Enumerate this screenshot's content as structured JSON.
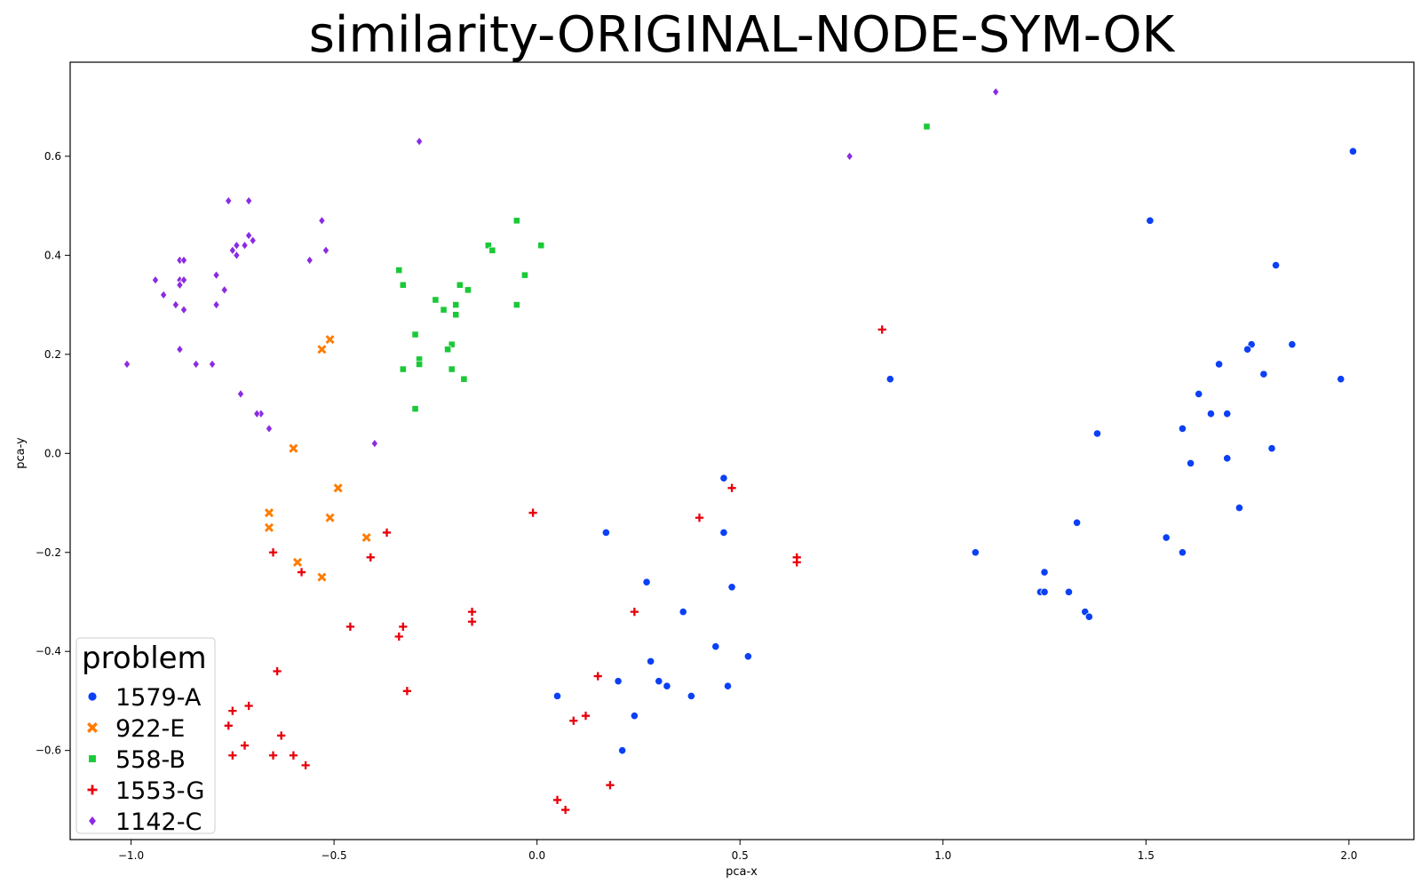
{
  "chart_data": {
    "type": "scatter",
    "title": "similarity-ORIGINAL-NODE-SYM-OK",
    "xlabel": "pca-x",
    "ylabel": "pca-y",
    "xlim": [
      -1.15,
      2.16
    ],
    "ylim": [
      -0.78,
      0.79
    ],
    "x_ticks": [
      -1.0,
      -0.5,
      0.0,
      0.5,
      1.0,
      1.5,
      2.0
    ],
    "x_tick_labels": [
      "−1.0",
      "−0.5",
      "0.0",
      "0.5",
      "1.0",
      "1.5",
      "2.0"
    ],
    "y_ticks": [
      -0.6,
      -0.4,
      -0.2,
      0.0,
      0.2,
      0.4,
      0.6
    ],
    "y_tick_labels": [
      "−0.6",
      "−0.4",
      "−0.2",
      "0.0",
      "0.2",
      "0.4",
      "0.6"
    ],
    "grid": false,
    "legend": {
      "title": "problem",
      "placement": "lower-left"
    },
    "series": [
      {
        "name": "1579-A",
        "marker": "circle",
        "color": "#0b40f5",
        "points": [
          [
            2.01,
            0.61
          ],
          [
            1.51,
            0.47
          ],
          [
            1.82,
            0.38
          ],
          [
            1.76,
            0.22
          ],
          [
            1.75,
            0.21
          ],
          [
            1.86,
            0.22
          ],
          [
            1.68,
            0.18
          ],
          [
            1.79,
            0.16
          ],
          [
            1.98,
            0.15
          ],
          [
            1.63,
            0.12
          ],
          [
            1.66,
            0.08
          ],
          [
            1.7,
            0.08
          ],
          [
            1.59,
            0.05
          ],
          [
            1.38,
            0.04
          ],
          [
            1.81,
            0.01
          ],
          [
            1.61,
            -0.02
          ],
          [
            1.7,
            -0.01
          ],
          [
            1.73,
            -0.11
          ],
          [
            1.33,
            -0.14
          ],
          [
            1.55,
            -0.17
          ],
          [
            1.59,
            -0.2
          ],
          [
            1.25,
            -0.24
          ],
          [
            1.24,
            -0.28
          ],
          [
            1.25,
            -0.28
          ],
          [
            1.31,
            -0.28
          ],
          [
            1.35,
            -0.32
          ],
          [
            1.36,
            -0.33
          ],
          [
            1.08,
            -0.2
          ],
          [
            0.87,
            0.15
          ],
          [
            0.46,
            -0.05
          ],
          [
            0.46,
            -0.16
          ],
          [
            0.17,
            -0.16
          ],
          [
            0.27,
            -0.26
          ],
          [
            0.48,
            -0.27
          ],
          [
            0.36,
            -0.32
          ],
          [
            0.44,
            -0.39
          ],
          [
            0.52,
            -0.41
          ],
          [
            0.28,
            -0.42
          ],
          [
            0.3,
            -0.46
          ],
          [
            0.32,
            -0.47
          ],
          [
            0.2,
            -0.46
          ],
          [
            0.47,
            -0.47
          ],
          [
            0.38,
            -0.49
          ],
          [
            0.05,
            -0.49
          ],
          [
            0.24,
            -0.53
          ],
          [
            0.21,
            -0.6
          ]
        ]
      },
      {
        "name": "922-E",
        "marker": "x",
        "color": "#ff7c00",
        "points": [
          [
            -0.51,
            0.23
          ],
          [
            -0.53,
            0.21
          ],
          [
            -0.6,
            0.01
          ],
          [
            -0.49,
            -0.07
          ],
          [
            -0.66,
            -0.12
          ],
          [
            -0.66,
            -0.15
          ],
          [
            -0.51,
            -0.13
          ],
          [
            -0.42,
            -0.17
          ],
          [
            -0.59,
            -0.22
          ],
          [
            -0.53,
            -0.25
          ]
        ]
      },
      {
        "name": "558-B",
        "marker": "square",
        "color": "#1ac938",
        "points": [
          [
            0.96,
            0.66
          ],
          [
            -0.05,
            0.47
          ],
          [
            0.01,
            0.42
          ],
          [
            -0.12,
            0.42
          ],
          [
            -0.11,
            0.41
          ],
          [
            -0.34,
            0.37
          ],
          [
            -0.03,
            0.36
          ],
          [
            -0.33,
            0.34
          ],
          [
            -0.19,
            0.34
          ],
          [
            -0.17,
            0.33
          ],
          [
            -0.25,
            0.31
          ],
          [
            -0.2,
            0.3
          ],
          [
            -0.23,
            0.29
          ],
          [
            -0.05,
            0.3
          ],
          [
            -0.2,
            0.28
          ],
          [
            -0.3,
            0.24
          ],
          [
            -0.21,
            0.22
          ],
          [
            -0.22,
            0.21
          ],
          [
            -0.29,
            0.19
          ],
          [
            -0.29,
            0.18
          ],
          [
            -0.33,
            0.17
          ],
          [
            -0.21,
            0.17
          ],
          [
            -0.18,
            0.15
          ],
          [
            -0.3,
            0.09
          ]
        ]
      },
      {
        "name": "1553-G",
        "marker": "plus",
        "color": "#e8000b",
        "points": [
          [
            0.85,
            0.25
          ],
          [
            0.48,
            -0.07
          ],
          [
            0.4,
            -0.13
          ],
          [
            -0.01,
            -0.12
          ],
          [
            0.64,
            -0.21
          ],
          [
            0.64,
            -0.22
          ],
          [
            -0.37,
            -0.16
          ],
          [
            -0.65,
            -0.2
          ],
          [
            -0.41,
            -0.21
          ],
          [
            -0.58,
            -0.24
          ],
          [
            -0.16,
            -0.32
          ],
          [
            -0.16,
            -0.34
          ],
          [
            0.24,
            -0.32
          ],
          [
            -0.46,
            -0.35
          ],
          [
            -0.33,
            -0.35
          ],
          [
            -0.34,
            -0.37
          ],
          [
            -0.32,
            -0.48
          ],
          [
            -0.64,
            -0.44
          ],
          [
            0.15,
            -0.45
          ],
          [
            -0.71,
            -0.51
          ],
          [
            -0.75,
            -0.52
          ],
          [
            -0.76,
            -0.55
          ],
          [
            0.12,
            -0.53
          ],
          [
            0.09,
            -0.54
          ],
          [
            -0.63,
            -0.57
          ],
          [
            -0.72,
            -0.59
          ],
          [
            -0.75,
            -0.61
          ],
          [
            -0.65,
            -0.61
          ],
          [
            -0.6,
            -0.61
          ],
          [
            -0.57,
            -0.63
          ],
          [
            0.18,
            -0.67
          ],
          [
            0.05,
            -0.7
          ],
          [
            0.07,
            -0.72
          ]
        ]
      },
      {
        "name": "1142-C",
        "marker": "diamond",
        "color": "#8b2be2",
        "points": [
          [
            1.13,
            0.73
          ],
          [
            0.77,
            0.6
          ],
          [
            -0.29,
            0.63
          ],
          [
            -0.76,
            0.51
          ],
          [
            -0.71,
            0.51
          ],
          [
            -0.53,
            0.47
          ],
          [
            -0.71,
            0.44
          ],
          [
            -0.7,
            0.43
          ],
          [
            -0.74,
            0.42
          ],
          [
            -0.75,
            0.41
          ],
          [
            -0.72,
            0.42
          ],
          [
            -0.52,
            0.41
          ],
          [
            -0.74,
            0.4
          ],
          [
            -0.56,
            0.39
          ],
          [
            -0.88,
            0.39
          ],
          [
            -0.87,
            0.39
          ],
          [
            -0.79,
            0.36
          ],
          [
            -0.94,
            0.35
          ],
          [
            -0.88,
            0.35
          ],
          [
            -0.87,
            0.35
          ],
          [
            -0.88,
            0.34
          ],
          [
            -0.77,
            0.33
          ],
          [
            -0.92,
            0.32
          ],
          [
            -0.89,
            0.3
          ],
          [
            -0.87,
            0.29
          ],
          [
            -0.79,
            0.3
          ],
          [
            -0.88,
            0.21
          ],
          [
            -1.01,
            0.18
          ],
          [
            -0.84,
            0.18
          ],
          [
            -0.8,
            0.18
          ],
          [
            -0.73,
            0.12
          ],
          [
            -0.68,
            0.08
          ],
          [
            -0.69,
            0.08
          ],
          [
            -0.66,
            0.05
          ],
          [
            -0.4,
            0.02
          ]
        ]
      }
    ]
  }
}
